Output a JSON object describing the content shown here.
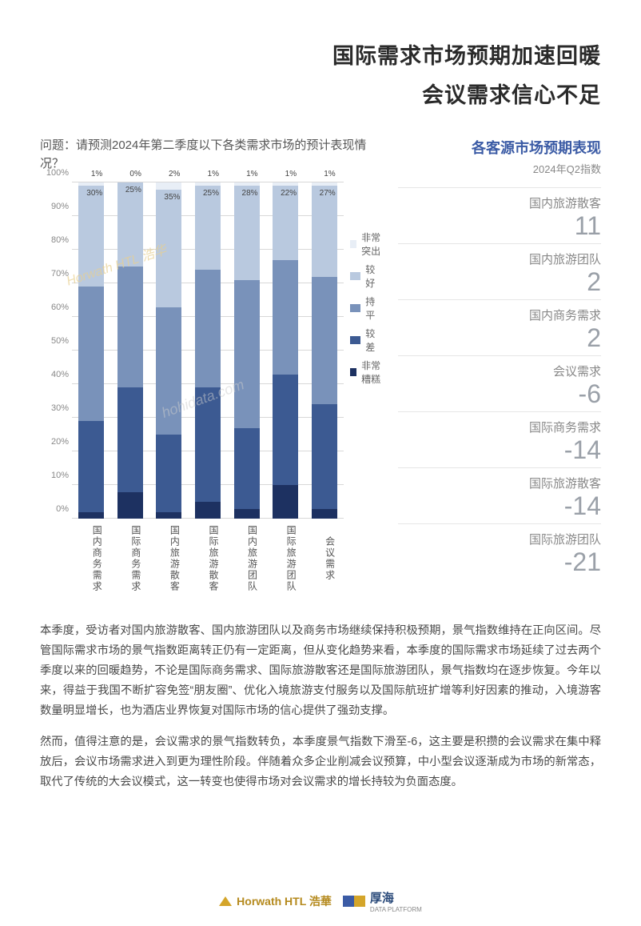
{
  "title": {
    "line1": "国际需求市场预期加速回暖",
    "line2": "会议需求信心不足"
  },
  "question": "问题：请预测2024年第二季度以下各类需求市场的预计表现情况？",
  "chart": {
    "type": "stacked-bar-100",
    "y_max": 100,
    "y_tick_step": 10,
    "y_suffix": "%",
    "categories": [
      "国内商务需求",
      "国际商务需求",
      "国内旅游散客",
      "国际旅游散客",
      "国内旅游团队",
      "国际旅游团队",
      "会议需求"
    ],
    "legend_labels": [
      "非常突出",
      "较好",
      "持平",
      "较差",
      "非常糟糕"
    ],
    "colors": {
      "非常突出": "#e8eef6",
      "较好": "#b9c9df",
      "持平": "#7992ba",
      "较差": "#3c5a92",
      "非常糟糕": "#1d3161"
    },
    "series": [
      {
        "非常突出": 1,
        "较好": 30,
        "持平": 40,
        "较差": 27,
        "非常糟糕": 2,
        "top_label": "1%",
        "upper_label": "30%"
      },
      {
        "非常突出": 0,
        "较好": 25,
        "持平": 36,
        "较差": 31,
        "非常糟糕": 8,
        "top_label": "0%",
        "upper_label": "25%"
      },
      {
        "非常突出": 2,
        "较好": 35,
        "持平": 38,
        "较差": 23,
        "非常糟糕": 2,
        "top_label": "2%",
        "upper_label": "35%"
      },
      {
        "非常突出": 1,
        "较好": 25,
        "持平": 35,
        "较差": 34,
        "非常糟糕": 5,
        "top_label": "1%",
        "upper_label": "25%"
      },
      {
        "非常突出": 1,
        "较好": 28,
        "持平": 44,
        "较差": 24,
        "非常糟糕": 3,
        "top_label": "1%",
        "upper_label": "28%"
      },
      {
        "非常突出": 1,
        "较好": 22,
        "持平": 34,
        "较差": 33,
        "非常糟糕": 10,
        "top_label": "1%",
        "upper_label": "22%"
      },
      {
        "非常突出": 1,
        "较好": 27,
        "持平": 38,
        "较差": 31,
        "非常糟糕": 3,
        "top_label": "1%",
        "upper_label": "27%"
      }
    ],
    "grid_color": "#d8d8d8",
    "axis_font_size": 11
  },
  "right_panel": {
    "title": "各客源市场预期表现",
    "subtitle": "2024年Q2指数",
    "metrics": [
      {
        "label": "国内旅游散客",
        "value": "11"
      },
      {
        "label": "国内旅游团队",
        "value": "2"
      },
      {
        "label": "国内商务需求",
        "value": "2"
      },
      {
        "label": "会议需求",
        "value": "-6"
      },
      {
        "label": "国际商务需求",
        "value": "-14"
      },
      {
        "label": "国际旅游散客",
        "value": "-14"
      },
      {
        "label": "国际旅游团队",
        "value": "-21"
      }
    ]
  },
  "paragraphs": [
    "本季度，受访者对国内旅游散客、国内旅游团队以及商务市场继续保持积极预期，景气指数维持在正向区间。尽管国际需求市场的景气指数距离转正仍有一定距离，但从变化趋势来看，本季度的国际需求市场延续了过去两个季度以来的回暖趋势，不论是国际商务需求、国际旅游散客还是国际旅游团队，景气指数均在逐步恢复。今年以来，得益于我国不断扩容免签“朋友圈”、优化入境旅游支付服务以及国际航班扩增等利好因素的推动，入境游客数量明显增长，也为酒店业界恢复对国际市场的信心提供了强劲支撑。",
    "然而，值得注意的是，会议需求的景气指数转负，本季度景气指数下滑至-6，这主要是积攒的会议需求在集中释放后，会议市场需求进入到更为理性阶段。伴随着众多企业削减会议预算，中小型会议逐渐成为市场的新常态，取代了传统的大会议模式，这一转变也使得市场对会议需求的增长持较为负面态度。"
  ],
  "watermarks": {
    "w1": "Horwath HTL 浩华",
    "w2": "hohidata.com"
  },
  "footer": {
    "horwath": "Horwath HTL 浩華",
    "houhai": {
      "brand": "厚海",
      "sub": "DATA PLATFORM",
      "c1": "#3b5ba5",
      "c2": "#d4a52a"
    }
  }
}
